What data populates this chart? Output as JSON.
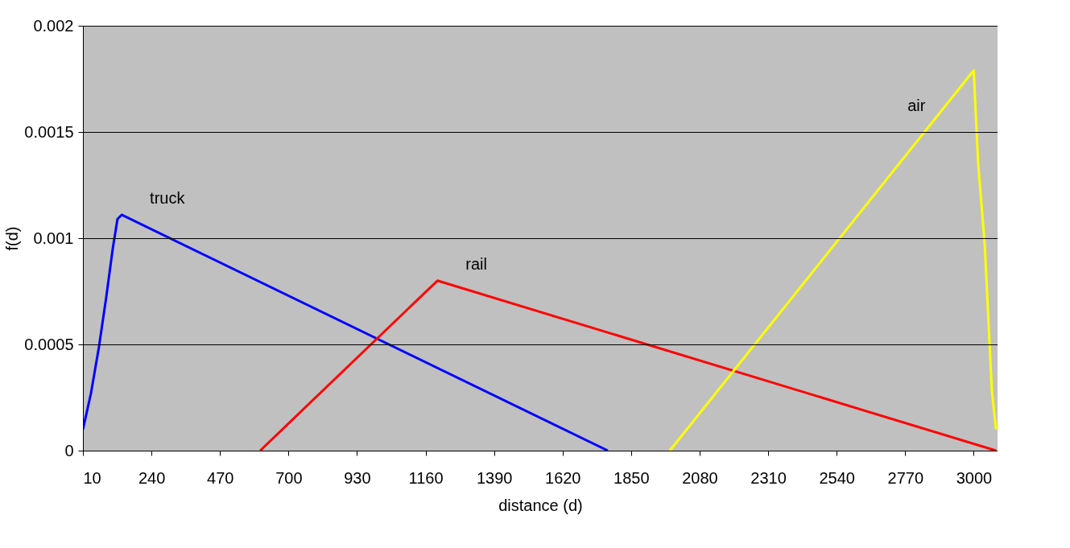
{
  "chart_data": {
    "type": "line",
    "xlabel": "distance (d)",
    "ylabel": "f(d)",
    "xlim": [
      10,
      3080
    ],
    "xticks": [
      10,
      240,
      470,
      700,
      930,
      1160,
      1390,
      1620,
      1850,
      2080,
      2310,
      2540,
      2770,
      3000
    ],
    "ylim": [
      0,
      0.002
    ],
    "yticks": [
      0,
      0.0005,
      0.001,
      0.0015,
      0.002
    ],
    "grid": "y",
    "legend": false,
    "marker": "none",
    "line_style": "solid",
    "series": [
      {
        "name": "truck",
        "color": "#0000ff",
        "x": [
          10,
          37,
          64,
          88,
          110,
          126,
          140,
          1772
        ],
        "values": [
          0.0001,
          0.00027,
          0.00049,
          0.00072,
          0.00095,
          0.00109,
          0.00111,
          0
        ]
      },
      {
        "name": "rail",
        "color": "#ff0000",
        "x": [
          605,
          1200,
          3075
        ],
        "values": [
          0,
          0.0008,
          0
        ]
      },
      {
        "name": "air",
        "color": "#ffff00",
        "x": [
          1980,
          3000,
          3015,
          3037,
          3061,
          3075
        ],
        "values": [
          0,
          0.00179,
          0.00135,
          0.00097,
          0.00028,
          0.0001
        ]
      }
    ]
  }
}
